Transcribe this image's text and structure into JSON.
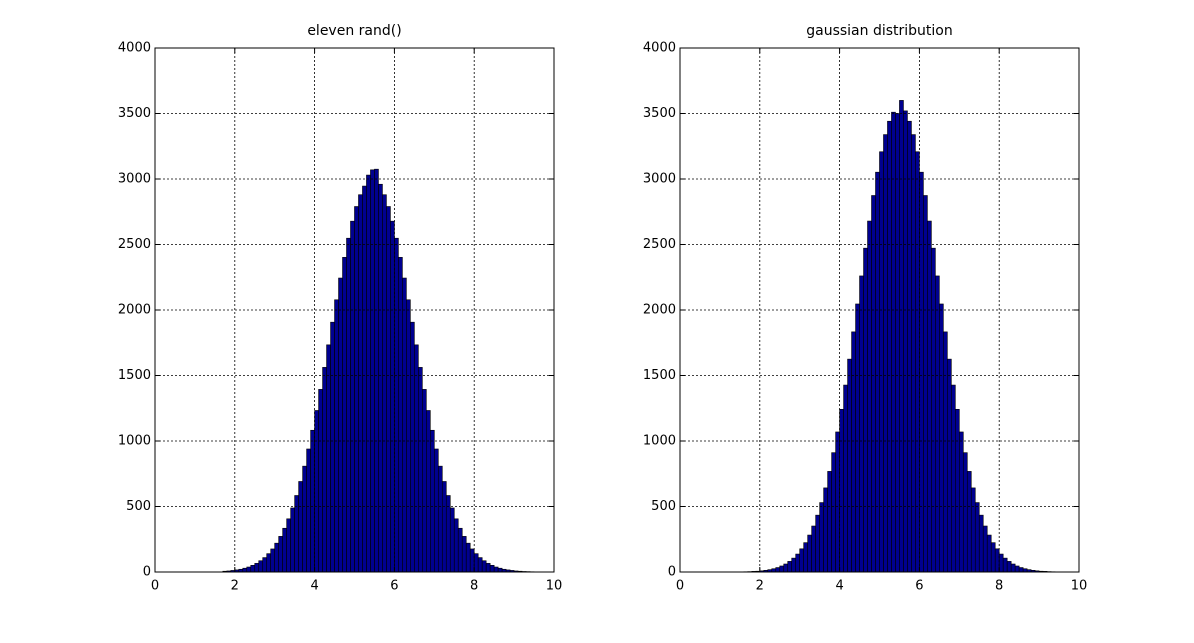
{
  "chart_data": [
    {
      "type": "histogram",
      "title": "eleven rand()",
      "color": "#00008f",
      "grid": true,
      "xlim": [
        0,
        10
      ],
      "ylim": [
        0,
        4000
      ],
      "xticks": [
        0,
        2,
        4,
        6,
        8,
        10
      ],
      "yticks": [
        0,
        500,
        1000,
        1500,
        2000,
        2500,
        3000,
        3500,
        4000
      ],
      "bins": [
        1.7,
        1.8,
        1.9,
        2,
        2.1,
        2.2,
        2.3,
        2.4,
        2.5,
        2.6,
        2.7,
        2.8,
        2.9,
        3,
        3.1,
        3.2,
        3.3,
        3.4,
        3.5,
        3.6,
        3.7,
        3.8,
        3.9,
        4,
        4.1,
        4.2,
        4.3,
        4.4,
        4.5,
        4.6,
        4.7,
        4.8,
        4.9,
        5,
        5.1,
        5.2,
        5.3,
        5.4,
        5.5,
        5.6,
        5.7,
        5.8,
        5.9,
        6,
        6.1,
        6.2,
        6.3,
        6.4,
        6.5,
        6.6,
        6.7,
        6.8,
        6.9,
        7,
        7.1,
        7.2,
        7.3,
        7.4,
        7.5,
        7.6,
        7.7,
        7.8,
        7.9,
        8,
        8.1,
        8.2,
        8.3,
        8.4,
        8.5,
        8.6,
        8.7,
        8.8,
        8.9,
        9,
        9.1,
        9.2,
        9.3,
        9.4,
        9.5
      ],
      "values": [
        6,
        8,
        12,
        16,
        21,
        29,
        38,
        51,
        66,
        86,
        110,
        140,
        176,
        220,
        272,
        334,
        406,
        489,
        584,
        691,
        808,
        939,
        1082,
        1233,
        1394,
        1562,
        1734,
        1907,
        2078,
        2244,
        2402,
        2548,
        2678,
        2790,
        2880,
        2946,
        3030,
        3070,
        3075,
        2960,
        2880,
        2790,
        2678,
        2548,
        2402,
        2244,
        2078,
        1907,
        1734,
        1562,
        1394,
        1233,
        1082,
        939,
        808,
        691,
        584,
        489,
        406,
        334,
        272,
        220,
        176,
        140,
        110,
        86,
        66,
        51,
        38,
        29,
        21,
        16,
        12,
        8,
        6,
        4,
        3,
        2
      ]
    },
    {
      "type": "histogram",
      "title": "gaussian distribution",
      "color": "#00008f",
      "grid": true,
      "xlim": [
        0,
        10
      ],
      "ylim": [
        0,
        4000
      ],
      "xticks": [
        0,
        2,
        4,
        6,
        8,
        10
      ],
      "yticks": [
        0,
        500,
        1000,
        1500,
        2000,
        2500,
        3000,
        3500,
        4000
      ],
      "bins": [
        1.1,
        1.2,
        1.3,
        1.4,
        1.5,
        1.6,
        1.7,
        1.8,
        1.9,
        2,
        2.1,
        2.2,
        2.3,
        2.4,
        2.5,
        2.6,
        2.7,
        2.8,
        2.9,
        3,
        3.1,
        3.2,
        3.3,
        3.4,
        3.5,
        3.6,
        3.7,
        3.8,
        3.9,
        4,
        4.1,
        4.2,
        4.3,
        4.4,
        4.5,
        4.6,
        4.7,
        4.8,
        4.9,
        5,
        5.1,
        5.2,
        5.3,
        5.4,
        5.5,
        5.6,
        5.7,
        5.8,
        5.9,
        6,
        6.1,
        6.2,
        6.3,
        6.4,
        6.5,
        6.6,
        6.7,
        6.8,
        6.9,
        7,
        7.1,
        7.2,
        7.3,
        7.4,
        7.5,
        7.6,
        7.7,
        7.8,
        7.9,
        8,
        8.1,
        8.2,
        8.3,
        8.4,
        8.5,
        8.6,
        8.7,
        8.8,
        8.9,
        9,
        9.1,
        9.2,
        9.3,
        9.4,
        9.5,
        9.6,
        9.7,
        9.8,
        9.9
      ],
      "values": [
        0,
        0,
        1,
        1,
        1,
        2,
        3,
        5,
        6,
        9,
        13,
        18,
        25,
        34,
        46,
        61,
        81,
        106,
        137,
        177,
        224,
        282,
        351,
        434,
        530,
        642,
        768,
        911,
        1069,
        1242,
        1427,
        1625,
        1833,
        2046,
        2260,
        2472,
        2679,
        2874,
        3052,
        3208,
        3339,
        3441,
        3510,
        3500,
        3600,
        3520,
        3441,
        3339,
        3208,
        3052,
        2874,
        2679,
        2472,
        2260,
        2046,
        1833,
        1625,
        1427,
        1242,
        1069,
        911,
        768,
        642,
        530,
        434,
        351,
        282,
        224,
        177,
        137,
        106,
        81,
        61,
        46,
        34,
        25,
        18,
        13,
        9,
        6,
        5,
        3,
        2,
        1,
        1,
        1,
        0,
        0
      ]
    }
  ]
}
